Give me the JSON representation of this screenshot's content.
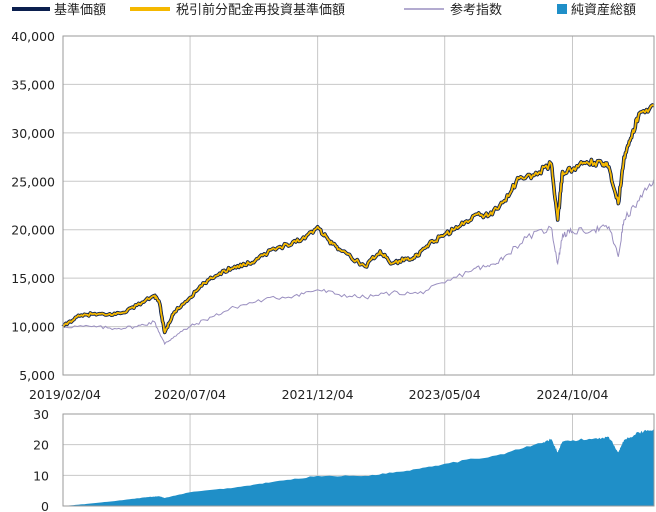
{
  "legend": [
    {
      "label": "基準価額",
      "kind": "line",
      "color": "#0b1f4e"
    },
    {
      "label": "税引前分配金再投資基準価額",
      "kind": "line",
      "color": "#f5b800"
    },
    {
      "label": "参考指数",
      "kind": "thin-line",
      "color": "#9a8fc0"
    },
    {
      "label": "純資産総額",
      "kind": "square",
      "color": "#1f8fc8"
    }
  ],
  "chart_data": [
    {
      "type": "line",
      "x_tick_labels": [
        "2019/02/04",
        "2020/07/04",
        "2021/12/04",
        "2023/05/04",
        "2024/10/04"
      ],
      "y_tick_labels": [
        "5,000",
        "10,000",
        "15,000",
        "20,000",
        "25,000",
        "30,000",
        "35,000",
        "40,000"
      ],
      "ylim": [
        5000,
        40000
      ],
      "x_range": [
        "2019/02/04",
        "2025/08/31"
      ],
      "grid": true,
      "legend_position": "top",
      "series": [
        {
          "name": "税引前分配金再投資基準価額",
          "color": "#f5b800",
          "note_visual": "yellow line with dark outline (基準価額 overlaps)",
          "points": [
            [
              "2019/02/04",
              10000
            ],
            [
              "2019/04/01",
              11000
            ],
            [
              "2019/06/01",
              11300
            ],
            [
              "2019/08/01",
              11200
            ],
            [
              "2019/10/01",
              11400
            ],
            [
              "2019/12/01",
              12200
            ],
            [
              "2020/02/10",
              13200
            ],
            [
              "2020/03/01",
              12500
            ],
            [
              "2020/03/23",
              9400
            ],
            [
              "2020/05/01",
              11500
            ],
            [
              "2020/07/04",
              13000
            ],
            [
              "2020/09/01",
              14500
            ],
            [
              "2020/11/01",
              15500
            ],
            [
              "2021/01/01",
              16200
            ],
            [
              "2021/03/01",
              16500
            ],
            [
              "2021/05/01",
              17500
            ],
            [
              "2021/08/01",
              18500
            ],
            [
              "2021/10/01",
              19000
            ],
            [
              "2021/12/04",
              20300
            ],
            [
              "2022/01/15",
              19000
            ],
            [
              "2022/03/01",
              18000
            ],
            [
              "2022/06/15",
              16200
            ],
            [
              "2022/08/15",
              17800
            ],
            [
              "2022/10/01",
              16500
            ],
            [
              "2022/12/01",
              17000
            ],
            [
              "2023/01/15",
              17300
            ],
            [
              "2023/03/01",
              18500
            ],
            [
              "2023/05/04",
              19500
            ],
            [
              "2023/07/01",
              20300
            ],
            [
              "2023/09/01",
              21500
            ],
            [
              "2023/11/01",
              21500
            ],
            [
              "2024/01/01",
              23000
            ],
            [
              "2024/03/01",
              25300
            ],
            [
              "2024/05/01",
              25600
            ],
            [
              "2024/07/10",
              26800
            ],
            [
              "2024/08/05",
              21000
            ],
            [
              "2024/08/25",
              26000
            ],
            [
              "2024/10/04",
              26200
            ],
            [
              "2024/12/01",
              27000
            ],
            [
              "2025/02/01",
              26800
            ],
            [
              "2025/03/01",
              26500
            ],
            [
              "2025/04/08",
              22700
            ],
            [
              "2025/05/01",
              27500
            ],
            [
              "2025/06/01",
              29500
            ],
            [
              "2025/07/01",
              32000
            ],
            [
              "2025/08/31",
              32800
            ]
          ]
        },
        {
          "name": "参考指数",
          "color": "#9a8fc0",
          "points": [
            [
              "2019/02/04",
              10000
            ],
            [
              "2019/06/01",
              10000
            ],
            [
              "2019/09/01",
              9800
            ],
            [
              "2019/12/01",
              10000
            ],
            [
              "2020/02/10",
              10500
            ],
            [
              "2020/03/23",
              8200
            ],
            [
              "2020/05/01",
              9000
            ],
            [
              "2020/07/04",
              10000
            ],
            [
              "2020/10/01",
              11000
            ],
            [
              "2021/01/01",
              12000
            ],
            [
              "2021/05/01",
              12800
            ],
            [
              "2021/09/01",
              13200
            ],
            [
              "2021/12/04",
              13800
            ],
            [
              "2022/03/01",
              13300
            ],
            [
              "2022/06/15",
              13000
            ],
            [
              "2022/10/01",
              13500
            ],
            [
              "2023/01/15",
              13400
            ],
            [
              "2023/05/04",
              14500
            ],
            [
              "2023/09/01",
              16000
            ],
            [
              "2023/11/01",
              16200
            ],
            [
              "2024/01/01",
              17200
            ],
            [
              "2024/04/01",
              19200
            ],
            [
              "2024/07/10",
              20200
            ],
            [
              "2024/08/05",
              16500
            ],
            [
              "2024/08/25",
              19500
            ],
            [
              "2024/10/04",
              19800
            ],
            [
              "2025/01/01",
              20000
            ],
            [
              "2025/03/01",
              20300
            ],
            [
              "2025/04/08",
              17200
            ],
            [
              "2025/05/01",
              21000
            ],
            [
              "2025/07/01",
              23000
            ],
            [
              "2025/08/31",
              25200
            ]
          ]
        }
      ]
    },
    {
      "type": "area",
      "series_name": "純資産総額",
      "color": "#1f8fc8",
      "y_tick_labels": [
        "0",
        "10",
        "20",
        "30"
      ],
      "ylim": [
        0,
        30
      ],
      "grid": true,
      "points": [
        [
          "2019/02/04",
          0
        ],
        [
          "2019/05/01",
          0.6
        ],
        [
          "2019/09/01",
          1.6
        ],
        [
          "2020/01/01",
          2.8
        ],
        [
          "2020/03/01",
          3.2
        ],
        [
          "2020/03/23",
          2.6
        ],
        [
          "2020/07/04",
          4.5
        ],
        [
          "2021/01/01",
          6.0
        ],
        [
          "2021/06/01",
          7.8
        ],
        [
          "2021/12/04",
          9.8
        ],
        [
          "2022/06/15",
          9.8
        ],
        [
          "2022/12/01",
          11.5
        ],
        [
          "2023/05/04",
          13.8
        ],
        [
          "2023/12/01",
          16.5
        ],
        [
          "2024/06/01",
          20.5
        ],
        [
          "2024/07/10",
          21.8
        ],
        [
          "2024/08/05",
          17.5
        ],
        [
          "2024/08/25",
          21.0
        ],
        [
          "2025/01/01",
          22.0
        ],
        [
          "2025/03/01",
          22.5
        ],
        [
          "2025/04/08",
          17.5
        ],
        [
          "2025/05/01",
          21.5
        ],
        [
          "2025/07/01",
          24.0
        ],
        [
          "2025/08/31",
          25.2
        ]
      ]
    }
  ]
}
